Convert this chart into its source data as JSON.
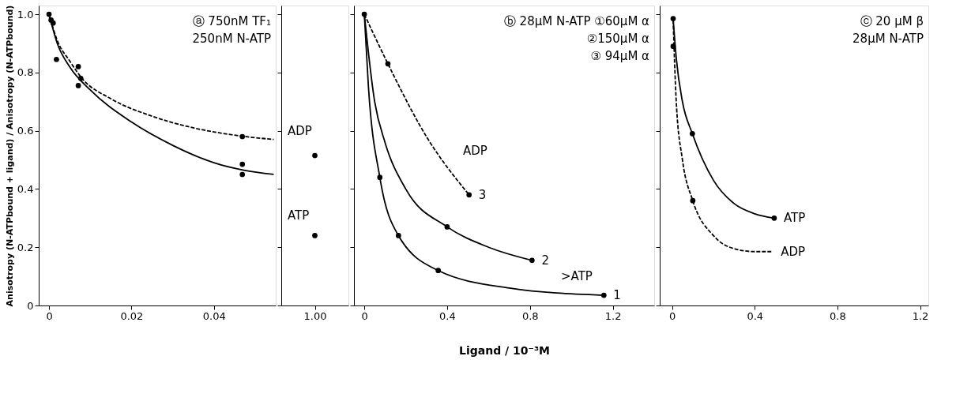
{
  "chart_data": [
    {
      "type": "line",
      "ylabel": "Anisotropy (N-ATPbound + ligand) / Anisotropy (N-ATPbound)",
      "xlim": [
        -0.0025,
        0.055
      ],
      "xticks": [
        0,
        0.02,
        0.04
      ],
      "ylim": [
        0,
        1.03
      ],
      "yticks": [
        0,
        0.2,
        0.4,
        0.6,
        0.8,
        {
          "value": 1,
          "label": "1.0"
        }
      ],
      "grid": false,
      "legend": false,
      "series": [
        {
          "color": "#000000",
          "line_style": "solid",
          "x": [
            0,
            0.002,
            0.005,
            0.01,
            0.02,
            0.03,
            0.04,
            0.0545
          ],
          "values": [
            1.0,
            0.9,
            0.82,
            0.74,
            0.63,
            0.55,
            0.49,
            0.45
          ]
        },
        {
          "color": "#000000",
          "line_style": "dashed",
          "x": [
            0,
            0.002,
            0.005,
            0.008,
            0.015,
            0.025,
            0.035,
            0.045,
            0.0545
          ],
          "values": [
            1.0,
            0.91,
            0.84,
            0.78,
            0.71,
            0.65,
            0.61,
            0.585,
            0.57
          ]
        },
        {
          "type": "scatter",
          "color": "#000000",
          "marker": "circle",
          "x": [
            0,
            0.0005,
            0.001,
            0.0071,
            0.0071,
            0.0469,
            0.0469
          ],
          "values": [
            1.0,
            0.98,
            0.97,
            0.755,
            0.82,
            0.485,
            0.45
          ]
        },
        {
          "type": "scatter",
          "color": "#000000",
          "marker": "circle",
          "x": [
            0.0018,
            0.0077,
            0.0469
          ],
          "values": [
            0.845,
            0.78,
            0.58
          ]
        }
      ],
      "annotations": [
        "ⓐ 750nM TF₁",
        "250nM N-ATP"
      ]
    },
    {
      "type": "scatter",
      "categories": [
        "1.00"
      ],
      "ylim": [
        0,
        1.03
      ],
      "yticks": [
        0,
        0.2,
        0.4,
        0.6,
        0.8,
        1
      ],
      "tick_labels": "x",
      "grid": false,
      "legend": false,
      "series": [
        {
          "color": "#000000",
          "marker": "circle",
          "x": [
            "1.00"
          ],
          "values": [
            0.515
          ]
        },
        {
          "color": "#000000",
          "marker": "circle",
          "x": [
            "1.00"
          ],
          "values": [
            0.24
          ]
        }
      ],
      "annotations": [
        "ADP",
        "ATP"
      ]
    },
    {
      "type": "line",
      "xlabel": "Ligand / 10⁻³M",
      "xlim": [
        -0.05,
        1.4
      ],
      "xticks": [
        0,
        0.4,
        0.8,
        1.2
      ],
      "ylim": [
        0,
        1.03
      ],
      "yticks": [
        0,
        0.2,
        0.4,
        0.6,
        0.8,
        1
      ],
      "tick_labels": "x",
      "grid": false,
      "legend": false,
      "series": [
        {
          "color": "#000000",
          "line_style": "dashed",
          "x": [
            0,
            0.114,
            0.3,
            0.506
          ],
          "values": [
            1.0,
            0.83,
            0.58,
            0.38
          ]
        },
        {
          "color": "#000000",
          "line_style": "solid",
          "x": [
            0,
            0.05,
            0.1,
            0.2,
            0.4,
            0.6,
            0.81
          ],
          "values": [
            1.0,
            0.7,
            0.56,
            0.4,
            0.27,
            0.2,
            0.155
          ]
        },
        {
          "color": "#000000",
          "line_style": "solid",
          "x": [
            0,
            0.02,
            0.075,
            0.165,
            0.357,
            0.7,
            1.157
          ],
          "values": [
            1.0,
            0.75,
            0.44,
            0.24,
            0.12,
            0.06,
            0.035
          ]
        },
        {
          "type": "scatter",
          "color": "#000000",
          "marker": "circle",
          "x": [
            0,
            0.114,
            0.506,
            0.4,
            0.81,
            0.075,
            0.165,
            0.357,
            1.157
          ],
          "values": [
            1.0,
            0.83,
            0.38,
            0.27,
            0.155,
            0.44,
            0.24,
            0.12,
            0.035
          ]
        }
      ],
      "annotations": [
        "ⓑ 28μM N-ATP ①60μM α",
        "②150μM α",
        "③ 94μM α",
        "ADP",
        ">ATP",
        {
          "text": "3",
          "x": 0.506,
          "y": 0.38
        },
        {
          "text": "2",
          "x": 0.81,
          "y": 0.155
        },
        {
          "text": "1",
          "x": 1.157,
          "y": 0.035
        }
      ]
    },
    {
      "type": "line",
      "xlim": [
        -0.06,
        1.24
      ],
      "xticks": [
        0,
        0.4,
        0.8,
        1.2
      ],
      "ylim": [
        0,
        1.03
      ],
      "yticks": [
        0,
        0.2,
        0.4,
        0.6,
        0.8,
        1
      ],
      "tick_labels": "x",
      "grid": false,
      "legend": false,
      "series": [
        {
          "color": "#000000",
          "line_style": "solid",
          "x": [
            0.005,
            0.02,
            0.05,
            0.098,
            0.2,
            0.3,
            0.4,
            0.494
          ],
          "values": [
            0.985,
            0.85,
            0.7,
            0.59,
            0.43,
            0.35,
            0.315,
            0.3
          ]
        },
        {
          "color": "#000000",
          "line_style": "dashed",
          "x": [
            0.005,
            0.02,
            0.05,
            0.1,
            0.2,
            0.3,
            0.4,
            0.48
          ],
          "values": [
            0.98,
            0.7,
            0.5,
            0.36,
            0.24,
            0.195,
            0.185,
            0.185
          ]
        },
        {
          "type": "scatter",
          "color": "#000000",
          "marker": "circle",
          "x": [
            0.005,
            0.098,
            0.494,
            0.005,
            0.1
          ],
          "values": [
            0.985,
            0.59,
            0.3,
            0.89,
            0.36
          ]
        }
      ],
      "annotations": [
        "ⓒ 20 μM β",
        "28μM N-ATP",
        {
          "text": "ATP",
          "x": 0.494,
          "y": 0.3
        },
        {
          "text": "ADP",
          "x": 0.48,
          "y": 0.185
        }
      ]
    }
  ]
}
